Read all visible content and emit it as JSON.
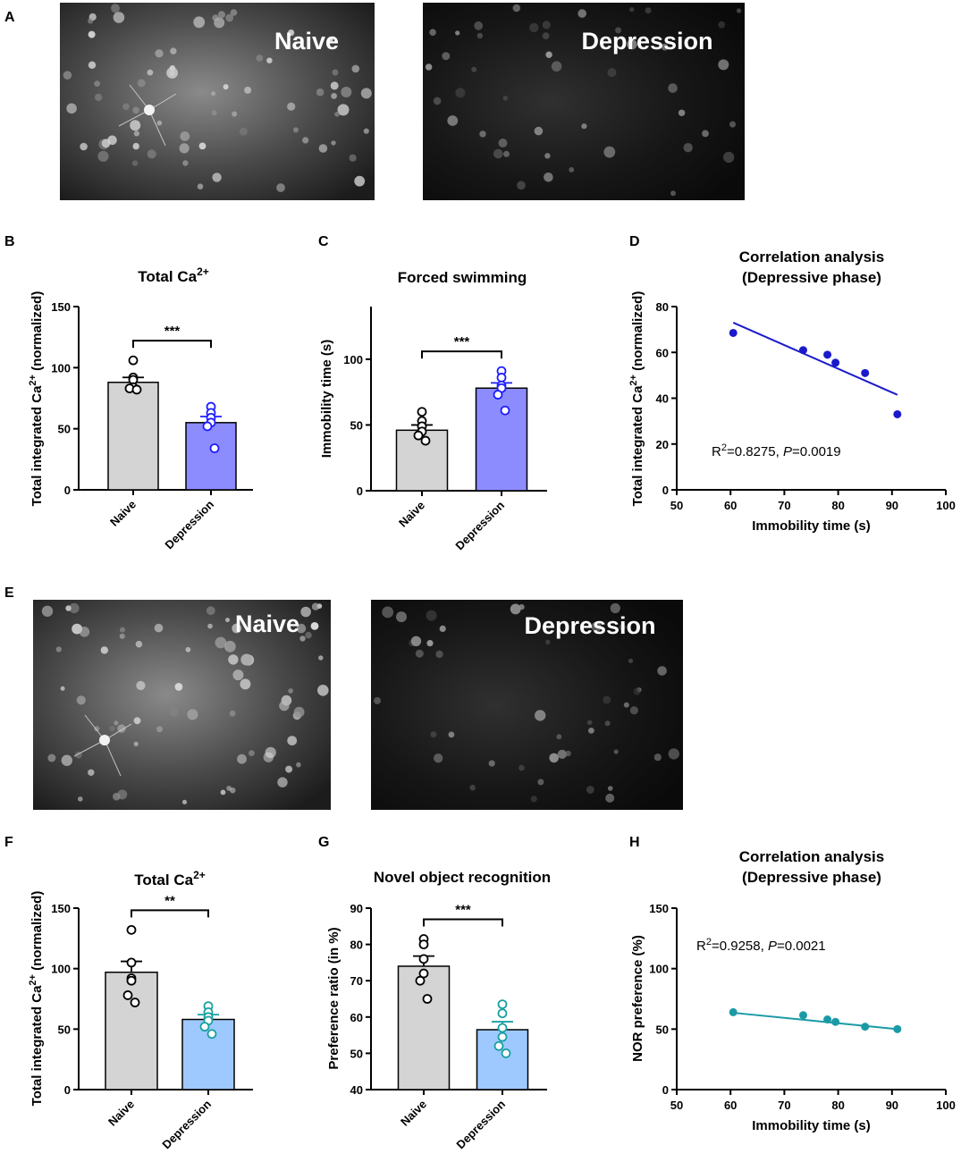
{
  "panel_letters": {
    "A": "A",
    "B": "B",
    "C": "C",
    "D": "D",
    "E": "E",
    "F": "F",
    "G": "G",
    "H": "H"
  },
  "micrographs": [
    {
      "panel": "A",
      "label": "Naive",
      "brightness": "bright"
    },
    {
      "panel": "A",
      "label": "Depression",
      "brightness": "dim"
    },
    {
      "panel": "E",
      "label": "Naive",
      "brightness": "bright"
    },
    {
      "panel": "E",
      "label": "Depression",
      "brightness": "dim"
    }
  ],
  "colors": {
    "naive_bar": "#d4d4d4",
    "depression_bar_B": "#8c8cff",
    "depression_point_B": "#1e1eff",
    "scatter_D": "#1a1acc",
    "depression_bar_F": "#9ec9ff",
    "depression_point_F": "#1aa0a0",
    "scatter_H": "#1a9aa6"
  },
  "chart_data": [
    {
      "panel": "B",
      "type": "bar",
      "title": "Total Ca",
      "title_sup": "2+",
      "ylabel": "Total integrated Ca",
      "ylabel_sup": "2+",
      "ylabel_suffix": " (normalized)",
      "ylim": [
        0,
        150
      ],
      "yticks": [
        0,
        50,
        100,
        150
      ],
      "categories": [
        "Naive",
        "Depression"
      ],
      "values": [
        88,
        55
      ],
      "sem": [
        4,
        5
      ],
      "points": [
        [
          106,
          92,
          90,
          84,
          83,
          82
        ],
        [
          68,
          63,
          59,
          55,
          52,
          34
        ]
      ],
      "significance": "***"
    },
    {
      "panel": "C",
      "type": "bar",
      "title": "Forced swimming",
      "ylabel": "Immobility time (s)",
      "ylim": [
        0,
        140
      ],
      "yticks": [
        0,
        50,
        100
      ],
      "categories": [
        "Naive",
        "Depression"
      ],
      "values": [
        46,
        78
      ],
      "sem": [
        4,
        4
      ],
      "points": [
        [
          60,
          53,
          49,
          45,
          42,
          38
        ],
        [
          91,
          86,
          80,
          78,
          73,
          61
        ]
      ],
      "significance": "***"
    },
    {
      "panel": "D",
      "type": "scatter",
      "title": "Correlation analysis",
      "subtitle": "(Depressive phase)",
      "xlabel": "Immobility time (s)",
      "ylabel": "Total integrated Ca",
      "ylabel_sup": "2+",
      "ylabel_suffix": " (normalized)",
      "xlim": [
        50,
        100
      ],
      "ylim": [
        0,
        80
      ],
      "xticks": [
        50,
        60,
        70,
        80,
        90,
        100
      ],
      "yticks": [
        0,
        20,
        40,
        60,
        80
      ],
      "x": [
        60.5,
        73.5,
        78,
        79.5,
        85,
        91
      ],
      "y": [
        68.5,
        61,
        59,
        55.5,
        51,
        33
      ],
      "fit": {
        "x": [
          60.5,
          91
        ],
        "y": [
          73,
          41.5
        ]
      },
      "annotation": {
        "r2_prefix": "R",
        "r2_sup": "2",
        "r2_value": "=0.8275, ",
        "p_label": "P",
        "p_value": "=0.0019"
      }
    },
    {
      "panel": "F",
      "type": "bar",
      "title": "Total Ca",
      "title_sup": "2+",
      "ylabel": "Total integrated Ca",
      "ylabel_sup": "2+",
      "ylabel_suffix": " (normalized)",
      "ylim": [
        0,
        150
      ],
      "yticks": [
        0,
        50,
        100,
        150
      ],
      "categories": [
        "Naive",
        "Depression"
      ],
      "values": [
        97,
        58
      ],
      "sem": [
        9,
        4
      ],
      "points": [
        [
          132,
          105,
          92,
          90,
          78,
          72
        ],
        [
          69,
          64,
          60,
          57,
          52,
          46
        ]
      ],
      "significance": "**"
    },
    {
      "panel": "G",
      "type": "bar",
      "title": "Novel object recognition",
      "ylabel": "Preference ratio (in %)",
      "ylim": [
        40,
        90
      ],
      "yticks": [
        40,
        50,
        60,
        70,
        80,
        90
      ],
      "categories": [
        "Naive",
        "Depression"
      ],
      "values": [
        74,
        56.5
      ],
      "sem": [
        2.8,
        2.2
      ],
      "points": [
        [
          81.5,
          80,
          76,
          72,
          70,
          65
        ],
        [
          63.5,
          61,
          57,
          54.5,
          52,
          50
        ]
      ],
      "significance": "***"
    },
    {
      "panel": "H",
      "type": "scatter",
      "title": "Correlation analysis",
      "subtitle": "(Depressive phase)",
      "xlabel": "Immobility time (s)",
      "ylabel": "NOR preference  (%)",
      "xlim": [
        50,
        100
      ],
      "ylim": [
        0,
        150
      ],
      "xticks": [
        50,
        60,
        70,
        80,
        90,
        100
      ],
      "yticks": [
        0,
        50,
        100,
        150
      ],
      "x": [
        60.5,
        73.5,
        78,
        79.5,
        85,
        91
      ],
      "y": [
        64,
        61.5,
        58,
        56,
        52,
        50
      ],
      "fit": {
        "x": [
          60.5,
          91
        ],
        "y": [
          63.5,
          50
        ]
      },
      "annotation": {
        "r2_prefix": "R",
        "r2_sup": "2",
        "r2_value": "=0.9258, ",
        "p_label": "P",
        "p_value": "=0.0021"
      }
    }
  ]
}
